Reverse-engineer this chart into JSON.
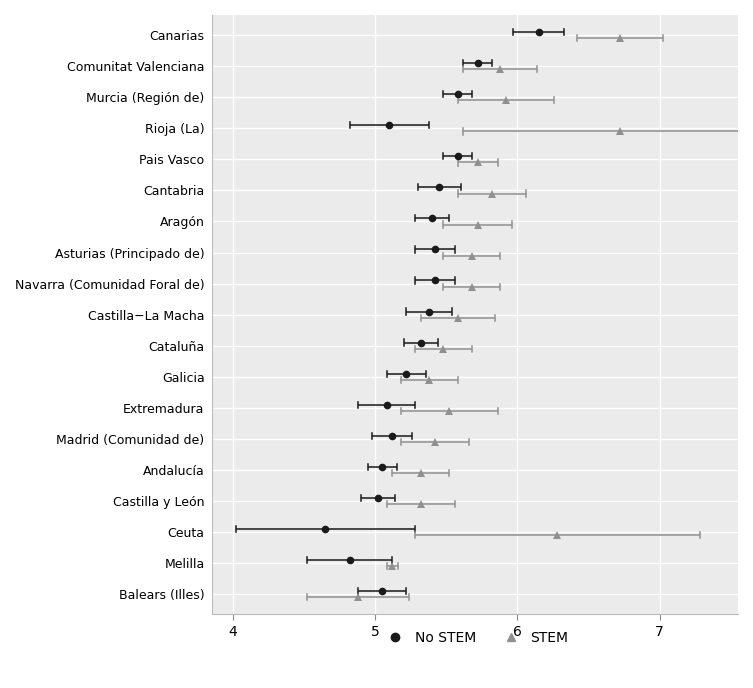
{
  "regions": [
    "Canarias",
    "Comunitat Valenciana",
    "Murcia (Región de)",
    "Rioja (La)",
    "Pais Vasco",
    "Cantabria",
    "Aragón",
    "Asturias (Principado de)",
    "Navarra (Comunidad Foral de)",
    "Castilla−La Macha",
    "Cataluña",
    "Galicia",
    "Extremadura",
    "Madrid (Comunidad de)",
    "Andalucía",
    "Castilla y León",
    "Ceuta",
    "Melilla",
    "Balears (Illes)"
  ],
  "nostem_mean": [
    6.15,
    5.72,
    5.58,
    5.1,
    5.58,
    5.45,
    5.4,
    5.42,
    5.42,
    5.38,
    5.32,
    5.22,
    5.08,
    5.12,
    5.05,
    5.02,
    4.65,
    4.82,
    5.05
  ],
  "nostem_lo": [
    5.97,
    5.62,
    5.48,
    4.82,
    5.48,
    5.3,
    5.28,
    5.28,
    5.28,
    5.22,
    5.2,
    5.08,
    4.88,
    4.98,
    4.95,
    4.9,
    4.02,
    4.52,
    4.88
  ],
  "nostem_hi": [
    6.33,
    5.82,
    5.68,
    5.38,
    5.68,
    5.6,
    5.52,
    5.56,
    5.56,
    5.54,
    5.44,
    5.36,
    5.28,
    5.26,
    5.15,
    5.14,
    5.28,
    5.12,
    5.22
  ],
  "stem_mean": [
    6.72,
    5.88,
    5.92,
    6.72,
    5.72,
    5.82,
    5.72,
    5.68,
    5.68,
    5.58,
    5.48,
    5.38,
    5.52,
    5.42,
    5.32,
    5.32,
    6.28,
    5.12,
    4.88
  ],
  "stem_lo": [
    6.42,
    5.62,
    5.58,
    5.62,
    5.58,
    5.58,
    5.48,
    5.48,
    5.48,
    5.32,
    5.28,
    5.18,
    5.18,
    5.18,
    5.12,
    5.08,
    5.28,
    5.08,
    4.52
  ],
  "stem_hi": [
    7.02,
    6.14,
    6.26,
    7.82,
    5.86,
    6.06,
    5.96,
    5.88,
    5.88,
    5.84,
    5.68,
    5.58,
    5.86,
    5.66,
    5.52,
    5.56,
    7.28,
    5.16,
    5.24
  ],
  "xlim": [
    3.85,
    7.55
  ],
  "xticks": [
    4,
    5,
    6,
    7
  ],
  "nostem_color": "#1a1a1a",
  "stem_color": "#909090",
  "bg_color": "#ebebeb",
  "grid_color": "#ffffff",
  "legend_nostem": "No STEM",
  "legend_stem": "STEM"
}
